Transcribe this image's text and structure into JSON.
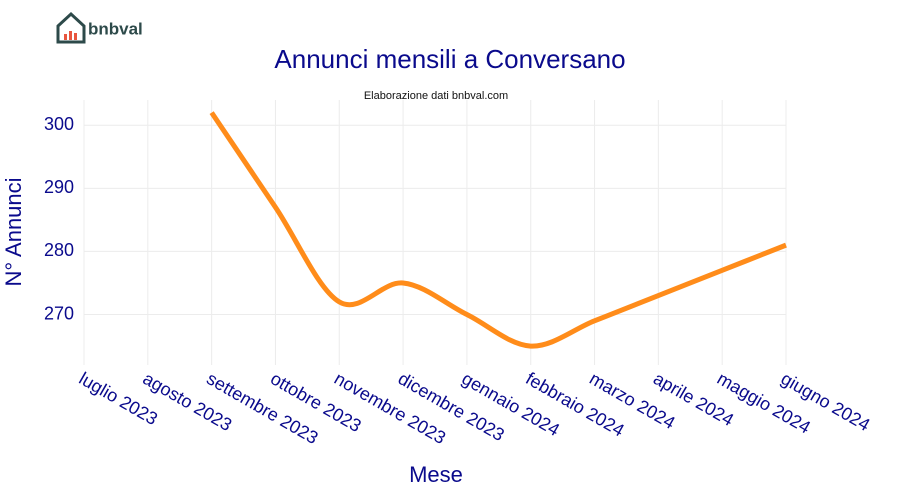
{
  "logo_text": "bnbval",
  "chart_data": {
    "type": "line",
    "title": "Annunci mensili a Conversano",
    "subtitle": "Elaborazione dati bnbval.com",
    "x_label": "Mese",
    "y_label": "N° Annunci",
    "categories": [
      "luglio 2023",
      "agosto 2023",
      "settembre 2023",
      "ottobre 2023",
      "novembre 2023",
      "dicembre 2023",
      "gennaio 2024",
      "febbraio 2024",
      "marzo 2024",
      "aprile 2024",
      "maggio 2024",
      "giugno 2024"
    ],
    "series": [
      {
        "name": "Annunci",
        "color": "#ff8c1a",
        "values": [
          null,
          null,
          302,
          287,
          272,
          275,
          270,
          265,
          269,
          273,
          277,
          281
        ]
      }
    ],
    "ylim": [
      262,
      304
    ],
    "yticks": [
      270,
      280,
      290,
      300
    ],
    "grid": true,
    "smooth": true
  }
}
